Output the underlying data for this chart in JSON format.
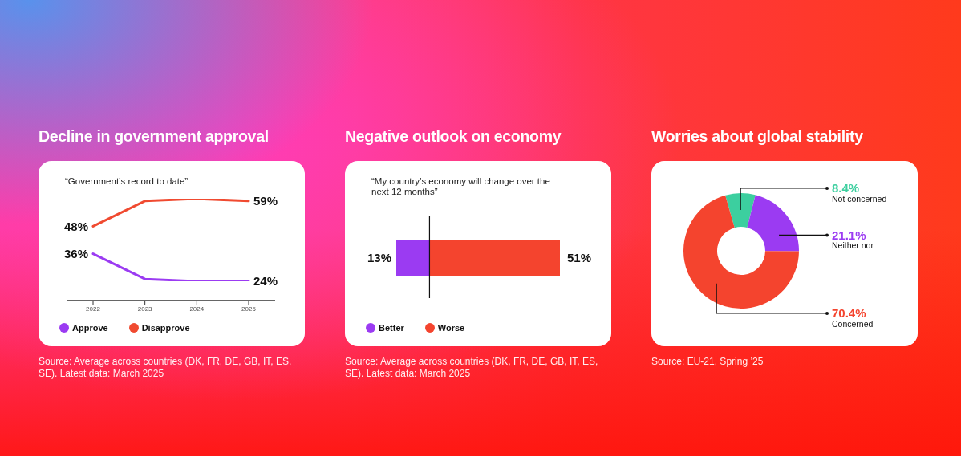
{
  "chart_data": [
    {
      "type": "line",
      "title": "Decline in government approval",
      "subtitle": "“Government’s record to date”",
      "categories": [
        "2022",
        "2023",
        "2024",
        "2025"
      ],
      "series": [
        {
          "name": "Approve",
          "color": "#9b3bf2",
          "values": [
            36,
            25,
            24,
            24
          ],
          "value_labels": [
            "36%",
            null,
            null,
            "24%"
          ]
        },
        {
          "name": "Disapprove",
          "color": "#f04a30",
          "values": [
            48,
            59,
            60,
            59
          ],
          "value_labels": [
            "48%",
            null,
            null,
            "59%"
          ]
        }
      ],
      "tick_labels": "x",
      "legend": "bottom left",
      "marker": "none",
      "annotations": [
        "Source: Average across countries (DK, FR, DE, GB, IT, ES, SE). Latest data: March 2025"
      ]
    },
    {
      "type": "bar",
      "orientation": "horizontal",
      "stacked": true,
      "title": "Negative outlook on economy",
      "subtitle": "“My country’s economy will change over the next 12 months”",
      "categories": [
        null
      ],
      "series": [
        {
          "name": "Better",
          "color": "#9b3bf2",
          "values": [
            13
          ],
          "value_labels": [
            "13%"
          ]
        },
        {
          "name": "Worse",
          "color": "#f4442e",
          "values": [
            51
          ],
          "value_labels": [
            "51%"
          ]
        }
      ],
      "tick_labels": false,
      "ref_lines": [
        {
          "axis": "x",
          "value": 13,
          "color": "#111111"
        }
      ],
      "legend": "bottom left",
      "annotations": [
        "Source: Average across countries (DK, FR, DE, GB, IT, ES, SE). Latest data: March 2025"
      ]
    },
    {
      "type": "donut",
      "title": "Worries about global stability",
      "categories": [
        "Not concerned",
        "Neither nor",
        "Concerned"
      ],
      "values": [
        8.4,
        21.1,
        70.4
      ],
      "value_labels": [
        "8.4%",
        "21.1%",
        "70.4%"
      ],
      "colors": [
        "#3ccf9f",
        "#9b3bf2",
        "#f4442e"
      ],
      "annotations": [
        "Source: EU-21, Spring ’25"
      ]
    }
  ]
}
